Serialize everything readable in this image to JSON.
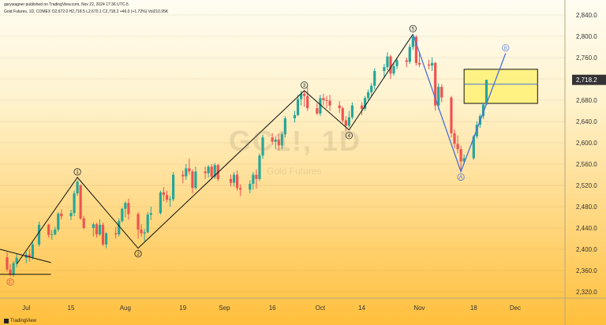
{
  "header": {
    "publisher_line": "garywagner published on TradingView.com, Nov 22, 2024 17:36 UTC-5",
    "ohlc_line": "Gold Futures, 1D, COMEX  O2,672.0  H2,718.5  L2,670.1  C2,718.2  +46.0 (+1.72%)  Vol210.95K"
  },
  "watermark": {
    "symbol": "GC1!, 1D",
    "name": "Gold Futures"
  },
  "footer": {
    "logo_text": "TradingView"
  },
  "colors": {
    "up": "#26a69a",
    "down": "#ef5350",
    "wave_line": "#111111",
    "corrective_line": "#4a6fd6",
    "price_label_bg": "#333333",
    "price_label_text": "#ffffff",
    "box_fill": "#fff176",
    "box_stroke": "#111111"
  },
  "chart_data": {
    "type": "candlestick",
    "title": "Gold Futures, 1D, COMEX",
    "y_axis": {
      "side": "right",
      "range": [
        2310,
        2850
      ],
      "ticks": [
        2320,
        2360,
        2400,
        2440,
        2480,
        2520,
        2560,
        2600,
        2640,
        2680,
        2720,
        2760,
        2800,
        2840
      ]
    },
    "x_axis": {
      "range_days": [
        "2024-06-25",
        "2024-12-08"
      ],
      "ticks": [
        {
          "label": "Jul",
          "date": "2024-07-01"
        },
        {
          "label": "15",
          "date": "2024-07-15"
        },
        {
          "label": "Aug",
          "date": "2024-08-01"
        },
        {
          "label": "19",
          "date": "2024-08-19"
        },
        {
          "label": "Sep",
          "date": "2024-09-01"
        },
        {
          "label": "16",
          "date": "2024-09-16"
        },
        {
          "label": "Oct",
          "date": "2024-10-01"
        },
        {
          "label": "14",
          "date": "2024-10-14"
        },
        {
          "label": "Nov",
          "date": "2024-11-01"
        },
        {
          "label": "18",
          "date": "2024-11-18"
        },
        {
          "label": "Dec",
          "date": "2024-12-01"
        }
      ]
    },
    "candles": [
      {
        "d": "2024-06-25",
        "o": 2385,
        "h": 2395,
        "l": 2358,
        "c": 2362
      },
      {
        "d": "2024-06-26",
        "o": 2362,
        "h": 2372,
        "l": 2349,
        "c": 2352
      },
      {
        "d": "2024-06-27",
        "o": 2352,
        "h": 2378,
        "l": 2348,
        "c": 2374
      },
      {
        "d": "2024-06-28",
        "o": 2374,
        "h": 2392,
        "l": 2366,
        "c": 2384
      },
      {
        "d": "2024-07-01",
        "o": 2384,
        "h": 2395,
        "l": 2374,
        "c": 2390
      },
      {
        "d": "2024-07-02",
        "o": 2390,
        "h": 2400,
        "l": 2377,
        "c": 2385
      },
      {
        "d": "2024-07-03",
        "o": 2385,
        "h": 2414,
        "l": 2381,
        "c": 2409
      },
      {
        "d": "2024-07-05",
        "o": 2409,
        "h": 2452,
        "l": 2405,
        "c": 2446
      },
      {
        "d": "2024-07-08",
        "o": 2446,
        "h": 2448,
        "l": 2422,
        "c": 2427
      },
      {
        "d": "2024-07-09",
        "o": 2427,
        "h": 2436,
        "l": 2418,
        "c": 2428
      },
      {
        "d": "2024-07-10",
        "o": 2428,
        "h": 2442,
        "l": 2426,
        "c": 2437
      },
      {
        "d": "2024-07-11",
        "o": 2437,
        "h": 2470,
        "l": 2433,
        "c": 2467
      },
      {
        "d": "2024-07-12",
        "o": 2467,
        "h": 2475,
        "l": 2456,
        "c": 2462
      },
      {
        "d": "2024-07-15",
        "o": 2462,
        "h": 2474,
        "l": 2455,
        "c": 2468
      },
      {
        "d": "2024-07-16",
        "o": 2468,
        "h": 2510,
        "l": 2462,
        "c": 2505
      },
      {
        "d": "2024-07-17",
        "o": 2505,
        "h": 2530,
        "l": 2500,
        "c": 2527
      },
      {
        "d": "2024-07-18",
        "o": 2520,
        "h": 2522,
        "l": 2455,
        "c": 2458
      },
      {
        "d": "2024-07-19",
        "o": 2458,
        "h": 2463,
        "l": 2438,
        "c": 2440
      },
      {
        "d": "2024-07-22",
        "o": 2440,
        "h": 2450,
        "l": 2424,
        "c": 2447
      },
      {
        "d": "2024-07-23",
        "o": 2447,
        "h": 2450,
        "l": 2422,
        "c": 2428
      },
      {
        "d": "2024-07-24",
        "o": 2428,
        "h": 2456,
        "l": 2425,
        "c": 2446
      },
      {
        "d": "2024-07-25",
        "o": 2446,
        "h": 2450,
        "l": 2406,
        "c": 2409
      },
      {
        "d": "2024-07-26",
        "o": 2409,
        "h": 2432,
        "l": 2402,
        "c": 2430
      },
      {
        "d": "2024-07-29",
        "o": 2430,
        "h": 2442,
        "l": 2420,
        "c": 2428
      },
      {
        "d": "2024-07-30",
        "o": 2428,
        "h": 2458,
        "l": 2424,
        "c": 2453
      },
      {
        "d": "2024-07-31",
        "o": 2453,
        "h": 2478,
        "l": 2450,
        "c": 2476
      },
      {
        "d": "2024-08-01",
        "o": 2476,
        "h": 2490,
        "l": 2460,
        "c": 2487
      },
      {
        "d": "2024-08-02",
        "o": 2487,
        "h": 2495,
        "l": 2456,
        "c": 2466
      },
      {
        "d": "2024-08-05",
        "o": 2466,
        "h": 2470,
        "l": 2420,
        "c": 2437
      },
      {
        "d": "2024-08-06",
        "o": 2437,
        "h": 2447,
        "l": 2424,
        "c": 2430
      },
      {
        "d": "2024-08-07",
        "o": 2430,
        "h": 2438,
        "l": 2415,
        "c": 2432
      },
      {
        "d": "2024-08-08",
        "o": 2432,
        "h": 2470,
        "l": 2430,
        "c": 2465
      },
      {
        "d": "2024-08-09",
        "o": 2465,
        "h": 2480,
        "l": 2455,
        "c": 2468
      },
      {
        "d": "2024-08-12",
        "o": 2468,
        "h": 2510,
        "l": 2465,
        "c": 2507
      },
      {
        "d": "2024-08-13",
        "o": 2507,
        "h": 2517,
        "l": 2490,
        "c": 2502
      },
      {
        "d": "2024-08-14",
        "o": 2502,
        "h": 2510,
        "l": 2488,
        "c": 2493
      },
      {
        "d": "2024-08-15",
        "o": 2493,
        "h": 2500,
        "l": 2480,
        "c": 2494
      },
      {
        "d": "2024-08-16",
        "o": 2494,
        "h": 2545,
        "l": 2490,
        "c": 2540
      },
      {
        "d": "2024-08-19",
        "o": 2540,
        "h": 2548,
        "l": 2524,
        "c": 2537
      },
      {
        "d": "2024-08-20",
        "o": 2537,
        "h": 2560,
        "l": 2530,
        "c": 2552
      },
      {
        "d": "2024-08-21",
        "o": 2552,
        "h": 2570,
        "l": 2540,
        "c": 2546
      },
      {
        "d": "2024-08-22",
        "o": 2546,
        "h": 2550,
        "l": 2505,
        "c": 2515
      },
      {
        "d": "2024-08-23",
        "o": 2515,
        "h": 2555,
        "l": 2512,
        "c": 2546
      },
      {
        "d": "2024-08-26",
        "o": 2546,
        "h": 2555,
        "l": 2532,
        "c": 2543
      },
      {
        "d": "2024-08-27",
        "o": 2543,
        "h": 2558,
        "l": 2535,
        "c": 2555
      },
      {
        "d": "2024-08-28",
        "o": 2555,
        "h": 2560,
        "l": 2532,
        "c": 2536
      },
      {
        "d": "2024-08-29",
        "o": 2536,
        "h": 2562,
        "l": 2532,
        "c": 2558
      },
      {
        "d": "2024-08-30",
        "o": 2558,
        "h": 2560,
        "l": 2528,
        "c": 2532
      },
      {
        "d": "2024-09-03",
        "o": 2532,
        "h": 2540,
        "l": 2518,
        "c": 2525
      },
      {
        "d": "2024-09-04",
        "o": 2525,
        "h": 2545,
        "l": 2518,
        "c": 2540
      },
      {
        "d": "2024-09-05",
        "o": 2540,
        "h": 2548,
        "l": 2510,
        "c": 2515
      },
      {
        "d": "2024-09-06",
        "o": 2515,
        "h": 2522,
        "l": 2500,
        "c": 2512
      },
      {
        "d": "2024-09-09",
        "o": 2512,
        "h": 2530,
        "l": 2505,
        "c": 2523
      },
      {
        "d": "2024-09-10",
        "o": 2523,
        "h": 2545,
        "l": 2512,
        "c": 2540
      },
      {
        "d": "2024-09-11",
        "o": 2540,
        "h": 2550,
        "l": 2514,
        "c": 2532
      },
      {
        "d": "2024-09-12",
        "o": 2532,
        "h": 2580,
        "l": 2528,
        "c": 2576
      },
      {
        "d": "2024-09-13",
        "o": 2576,
        "h": 2615,
        "l": 2570,
        "c": 2610
      },
      {
        "d": "2024-09-16",
        "o": 2610,
        "h": 2618,
        "l": 2596,
        "c": 2602
      },
      {
        "d": "2024-09-17",
        "o": 2602,
        "h": 2612,
        "l": 2588,
        "c": 2606
      },
      {
        "d": "2024-09-18",
        "o": 2606,
        "h": 2616,
        "l": 2585,
        "c": 2595
      },
      {
        "d": "2024-09-19",
        "o": 2595,
        "h": 2620,
        "l": 2588,
        "c": 2616
      },
      {
        "d": "2024-09-20",
        "o": 2616,
        "h": 2650,
        "l": 2610,
        "c": 2646
      },
      {
        "d": "2024-09-23",
        "o": 2646,
        "h": 2660,
        "l": 2638,
        "c": 2652
      },
      {
        "d": "2024-09-24",
        "o": 2652,
        "h": 2690,
        "l": 2650,
        "c": 2682
      },
      {
        "d": "2024-09-25",
        "o": 2682,
        "h": 2698,
        "l": 2670,
        "c": 2692
      },
      {
        "d": "2024-09-26",
        "o": 2692,
        "h": 2698,
        "l": 2668,
        "c": 2688
      },
      {
        "d": "2024-09-27",
        "o": 2688,
        "h": 2704,
        "l": 2660,
        "c": 2665
      },
      {
        "d": "2024-09-30",
        "o": 2665,
        "h": 2675,
        "l": 2652,
        "c": 2655
      },
      {
        "d": "2024-10-01",
        "o": 2655,
        "h": 2690,
        "l": 2650,
        "c": 2684
      },
      {
        "d": "2024-10-02",
        "o": 2684,
        "h": 2692,
        "l": 2670,
        "c": 2680
      },
      {
        "d": "2024-10-03",
        "o": 2680,
        "h": 2688,
        "l": 2665,
        "c": 2679
      },
      {
        "d": "2024-10-04",
        "o": 2679,
        "h": 2690,
        "l": 2660,
        "c": 2670
      },
      {
        "d": "2024-10-07",
        "o": 2670,
        "h": 2678,
        "l": 2656,
        "c": 2665
      },
      {
        "d": "2024-10-08",
        "o": 2665,
        "h": 2668,
        "l": 2638,
        "c": 2642
      },
      {
        "d": "2024-10-09",
        "o": 2642,
        "h": 2650,
        "l": 2622,
        "c": 2632
      },
      {
        "d": "2024-10-10",
        "o": 2632,
        "h": 2660,
        "l": 2628,
        "c": 2648
      },
      {
        "d": "2024-10-11",
        "o": 2648,
        "h": 2676,
        "l": 2644,
        "c": 2670
      },
      {
        "d": "2024-10-14",
        "o": 2670,
        "h": 2676,
        "l": 2652,
        "c": 2664
      },
      {
        "d": "2024-10-15",
        "o": 2664,
        "h": 2688,
        "l": 2660,
        "c": 2684
      },
      {
        "d": "2024-10-16",
        "o": 2684,
        "h": 2700,
        "l": 2680,
        "c": 2695
      },
      {
        "d": "2024-10-17",
        "o": 2695,
        "h": 2712,
        "l": 2688,
        "c": 2707
      },
      {
        "d": "2024-10-18",
        "o": 2707,
        "h": 2740,
        "l": 2700,
        "c": 2735
      },
      {
        "d": "2024-10-21",
        "o": 2735,
        "h": 2748,
        "l": 2722,
        "c": 2742
      },
      {
        "d": "2024-10-22",
        "o": 2742,
        "h": 2770,
        "l": 2736,
        "c": 2762
      },
      {
        "d": "2024-10-23",
        "o": 2762,
        "h": 2765,
        "l": 2720,
        "c": 2730
      },
      {
        "d": "2024-10-24",
        "o": 2730,
        "h": 2750,
        "l": 2726,
        "c": 2744
      },
      {
        "d": "2024-10-25",
        "o": 2744,
        "h": 2760,
        "l": 2738,
        "c": 2755
      },
      {
        "d": "2024-10-28",
        "o": 2755,
        "h": 2760,
        "l": 2742,
        "c": 2752
      },
      {
        "d": "2024-10-29",
        "o": 2752,
        "h": 2785,
        "l": 2748,
        "c": 2780
      },
      {
        "d": "2024-10-30",
        "o": 2780,
        "h": 2804,
        "l": 2774,
        "c": 2799
      },
      {
        "d": "2024-10-31",
        "o": 2799,
        "h": 2802,
        "l": 2745,
        "c": 2750
      },
      {
        "d": "2024-11-01",
        "o": 2750,
        "h": 2768,
        "l": 2742,
        "c": 2747
      },
      {
        "d": "2024-11-04",
        "o": 2747,
        "h": 2756,
        "l": 2738,
        "c": 2745
      },
      {
        "d": "2024-11-05",
        "o": 2745,
        "h": 2760,
        "l": 2735,
        "c": 2750
      },
      {
        "d": "2024-11-06",
        "o": 2750,
        "h": 2752,
        "l": 2660,
        "c": 2670
      },
      {
        "d": "2024-11-07",
        "o": 2670,
        "h": 2712,
        "l": 2662,
        "c": 2705
      },
      {
        "d": "2024-11-08",
        "o": 2705,
        "h": 2710,
        "l": 2676,
        "c": 2685
      },
      {
        "d": "2024-11-11",
        "o": 2685,
        "h": 2688,
        "l": 2610,
        "c": 2618
      },
      {
        "d": "2024-11-12",
        "o": 2618,
        "h": 2625,
        "l": 2590,
        "c": 2598
      },
      {
        "d": "2024-11-13",
        "o": 2598,
        "h": 2614,
        "l": 2580,
        "c": 2588
      },
      {
        "d": "2024-11-14",
        "o": 2588,
        "h": 2595,
        "l": 2546,
        "c": 2565
      },
      {
        "d": "2024-11-15",
        "o": 2565,
        "h": 2578,
        "l": 2560,
        "c": 2571
      },
      {
        "d": "2024-11-18",
        "o": 2571,
        "h": 2615,
        "l": 2568,
        "c": 2612
      },
      {
        "d": "2024-11-19",
        "o": 2612,
        "h": 2640,
        "l": 2608,
        "c": 2634
      },
      {
        "d": "2024-11-20",
        "o": 2634,
        "h": 2654,
        "l": 2628,
        "c": 2650
      },
      {
        "d": "2024-11-21",
        "o": 2650,
        "h": 2676,
        "l": 2645,
        "c": 2672
      },
      {
        "d": "2024-11-22",
        "o": 2672,
        "h": 2718.5,
        "l": 2670.1,
        "c": 2718.2
      }
    ],
    "last_price": {
      "value": 2718.2,
      "label": "2,718.2"
    },
    "target_zone": {
      "date_start": "2024-11-15",
      "date_end": "2024-12-08",
      "price_low": 2674,
      "price_high": 2738,
      "midline": 2710
    },
    "wave_count": [
      {
        "label": "1",
        "date": "2024-07-17",
        "price": 2535,
        "pos": "above"
      },
      {
        "label": "2",
        "date": "2024-08-05",
        "price": 2402,
        "pos": "below"
      },
      {
        "label": "3",
        "date": "2024-09-26",
        "price": 2698,
        "pos": "above"
      },
      {
        "label": "4",
        "date": "2024-10-10",
        "price": 2624,
        "pos": "below"
      },
      {
        "label": "5",
        "date": "2024-10-30",
        "price": 2804,
        "pos": "above"
      }
    ],
    "wave_path": [
      {
        "date": "2024-06-28",
        "price": 2372
      },
      {
        "date": "2024-07-17",
        "price": 2535
      },
      {
        "date": "2024-08-05",
        "price": 2402
      },
      {
        "date": "2024-09-26",
        "price": 2698
      },
      {
        "date": "2024-10-10",
        "price": 2624
      },
      {
        "date": "2024-10-30",
        "price": 2804
      }
    ],
    "corrective_labels": [
      {
        "label": "A",
        "date": "2024-11-14",
        "price": 2546,
        "pos": "below"
      },
      {
        "label": "B",
        "date": "2024-11-28",
        "price": 2768,
        "pos": "above"
      }
    ],
    "corrective_path": [
      {
        "date": "2024-10-30",
        "price": 2804
      },
      {
        "date": "2024-11-14",
        "price": 2546
      },
      {
        "date": "2024-11-28",
        "price": 2768
      }
    ],
    "e_label": {
      "label": "E",
      "date": "2024-06-26",
      "price": 2349,
      "pos": "below"
    },
    "triangle_lines": [
      [
        {
          "date": "2024-06-25",
          "price": 2400
        },
        {
          "date": "2024-07-05",
          "price": 2375
        }
      ],
      [
        {
          "date": "2024-06-25",
          "price": 2353
        },
        {
          "date": "2024-07-05",
          "price": 2353
        }
      ]
    ]
  }
}
